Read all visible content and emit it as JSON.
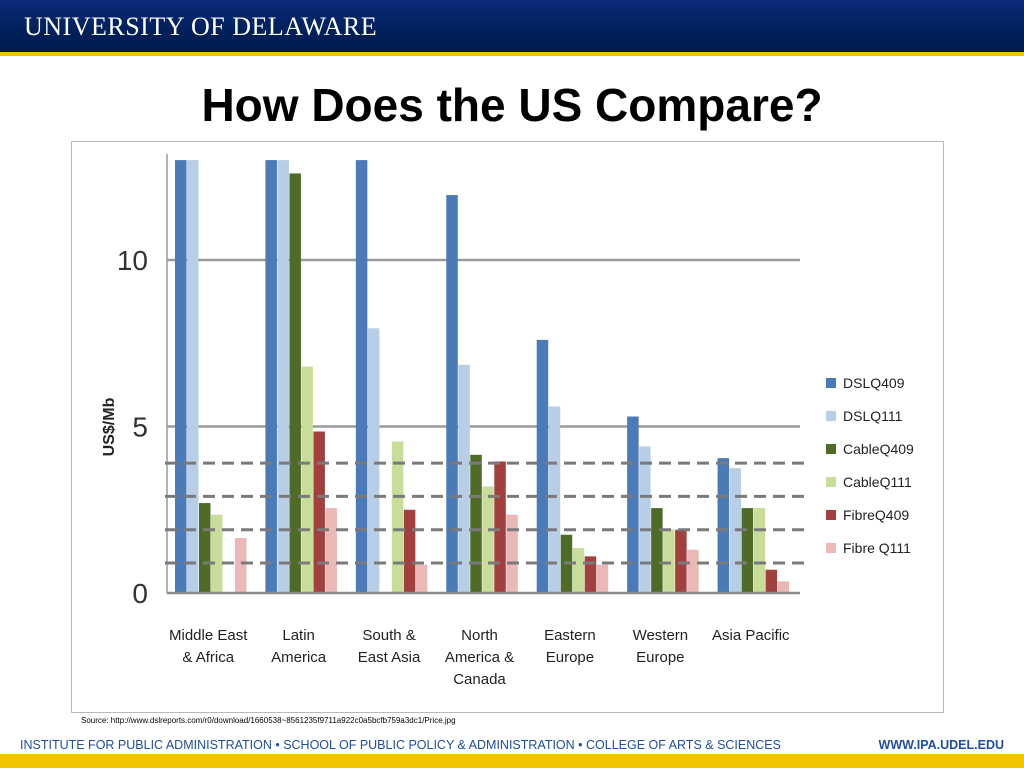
{
  "header": {
    "logo_text": "UNIVERSITY OF DELAWARE",
    "logo_color": "#00205b",
    "accent_color": "#f2c500"
  },
  "slide": {
    "title": "How Does the US Compare?"
  },
  "chart_data": {
    "type": "bar",
    "categories": [
      "Middle East\n& Africa",
      "Latin\nAmerica",
      "South &\nEast Asia",
      "North\nAmerica &\nCanada",
      "Eastern\nEurope",
      "Western\nEurope",
      "Asia Pacific"
    ],
    "ylabel": "US$/Mb",
    "ylim": [
      0,
      13
    ],
    "yticks": [
      "0",
      "5",
      "10"
    ],
    "grid": true,
    "legend_position": "right",
    "series": [
      {
        "name": "DSLQ409",
        "color": "#4a7ab7",
        "values": [
          13,
          13,
          13.1,
          11.95,
          7.6,
          5.3,
          4.05
        ]
      },
      {
        "name": "DSLQ111",
        "color": "#b8cde6",
        "values": [
          13,
          13,
          7.95,
          6.85,
          5.6,
          4.4,
          3.75
        ]
      },
      {
        "name": "CableQ409",
        "color": "#4e6b28",
        "values": [
          2.7,
          12.6,
          null,
          4.15,
          1.75,
          2.55,
          2.55
        ]
      },
      {
        "name": "CableQ111",
        "color": "#c7dd99",
        "values": [
          2.35,
          6.8,
          4.55,
          3.2,
          1.35,
          1.9,
          2.55
        ]
      },
      {
        "name": "FibreQ409",
        "color": "#a2403f",
        "values": [
          null,
          4.85,
          2.5,
          3.95,
          1.1,
          1.9,
          0.7
        ]
      },
      {
        "name": "Fibre Q111",
        "color": "#eab8b6",
        "values": [
          1.65,
          2.55,
          0.85,
          2.35,
          0.85,
          1.3,
          0.35
        ]
      }
    ],
    "reference_lines": [
      3.9,
      2.9,
      1.9,
      0.9
    ]
  },
  "source": {
    "text": "Source: http://www.dslreports.com/r0/download/1660538~8561235f9711a922c0a5bcfb759a3dc1/Price.jpg"
  },
  "footer": {
    "left": "INSTITUTE FOR PUBLIC ADMINISTRATION • SCHOOL OF PUBLIC POLICY & ADMINISTRATION • COLLEGE OF ARTS & SCIENCES",
    "right": "WWW.IPA.UDEL.EDU",
    "text_color": "#1f4fa0"
  }
}
